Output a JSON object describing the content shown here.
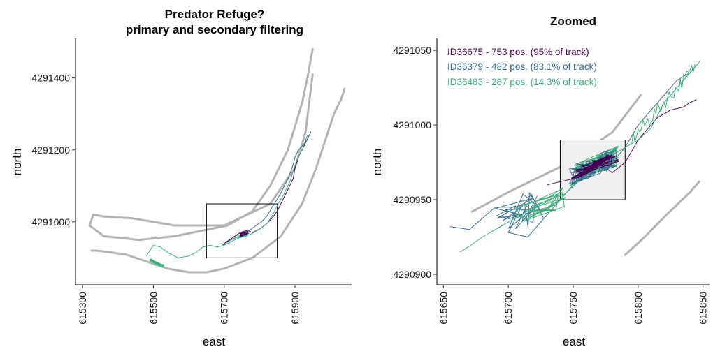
{
  "chart_data": [
    {
      "type": "line",
      "title": "Predator Refuge?",
      "subtitle": "primary and secondary filtering",
      "xlabel": "east",
      "ylabel": "north",
      "xlim": [
        615280,
        616060
      ],
      "ylim": [
        4290825,
        4291510
      ],
      "xticks": [
        615300,
        615500,
        615700,
        615900
      ],
      "yticks": [
        4291000,
        4291200,
        4291400
      ],
      "grid": false,
      "colors": {
        "river_outline": "#b3b3b3",
        "zoom_box": "#000000",
        "ID36675": "#440154",
        "ID36379": "#3b6e8f",
        "ID36483": "#3cb07a"
      },
      "river_outline": [
        {
          "x": [
            615950,
            615935,
            615920,
            615880,
            615830,
            615780,
            615710,
            615660,
            615560,
            615460,
            615360,
            615320,
            615330,
            615360,
            615440,
            615560,
            615700,
            615830,
            615900,
            615930,
            615940,
            615950
          ],
          "y": [
            4291480,
            4291400,
            4291330,
            4291200,
            4291100,
            4291030,
            4290990,
            4290980,
            4290960,
            4290950,
            4290960,
            4290990,
            4291020,
            4291015,
            4291010,
            4290990,
            4290990,
            4291050,
            4291150,
            4291250,
            4291330,
            4291410
          ]
        },
        {
          "x": [
            615325,
            615340,
            615420,
            615480,
            615540,
            615600,
            615650,
            615700,
            615780,
            615860,
            615920,
            615960,
            615990,
            616010,
            616030,
            616040
          ],
          "y": [
            4290920,
            4290920,
            4290910,
            4290890,
            4290870,
            4290860,
            4290860,
            4290870,
            4290900,
            4290960,
            4291050,
            4291150,
            4291240,
            4291300,
            4291340,
            4291370
          ]
        }
      ],
      "zoom_box": {
        "x": [
          615650,
          615850
        ],
        "y": [
          4290900,
          4291050
        ]
      },
      "series": [
        {
          "x": [
            615700,
            615730,
            615745,
            615760,
            615770,
            615780,
            615800,
            615820,
            615835,
            615850,
            615865,
            615875,
            615885,
            615895,
            615900,
            615910,
            615920,
            615930,
            615945
          ],
          "y": [
            4290940,
            4290960,
            4290970,
            4290975,
            4290975,
            4290970,
            4290980,
            4290995,
            4291010,
            4291030,
            4291060,
            4291080,
            4291100,
            4291120,
            4291150,
            4291180,
            4291200,
            4291220,
            4291250
          ]
        },
        {
          "x": [
            615690,
            615700,
            615710,
            615720,
            615730,
            615745,
            615755,
            615770,
            615790,
            615805,
            615820,
            615835,
            615848,
            615860,
            615870,
            615880,
            615888,
            615895,
            615900,
            615910,
            615920,
            615935,
            615945
          ],
          "y": [
            4290940,
            4290935,
            4290945,
            4290950,
            4290955,
            4290960,
            4290965,
            4290975,
            4290990,
            4291000,
            4291015,
            4291040,
            4291060,
            4291080,
            4291100,
            4291120,
            4291140,
            4291160,
            4291180,
            4291200,
            4291210,
            4291230,
            4291250
          ]
        },
        {
          "x": [
            615480,
            615500,
            615520,
            615540,
            615570,
            615600,
            615620,
            615640,
            615660,
            615680,
            615700,
            615720,
            615740,
            615760,
            615780,
            615800,
            615820,
            615835,
            615845,
            615855,
            615865,
            615875,
            615885,
            615895,
            615905,
            615920,
            615935
          ],
          "y": [
            4290905,
            4290935,
            4290930,
            4290915,
            4290900,
            4290905,
            4290915,
            4290930,
            4290935,
            4290930,
            4290935,
            4290945,
            4290955,
            4290960,
            4290968,
            4290980,
            4290995,
            4291015,
            4291035,
            4291055,
            4291070,
            4291090,
            4291110,
            4291140,
            4291170,
            4291200,
            4291240
          ]
        },
        {
          "x": [
            615490,
            615500,
            615510,
            615520,
            615530
          ],
          "y": [
            4290895,
            4290890,
            4290885,
            4290880,
            4290878
          ]
        }
      ]
    },
    {
      "type": "line",
      "title": "Zoomed",
      "xlabel": "east",
      "ylabel": "north",
      "xlim": [
        615645,
        615855
      ],
      "ylim": [
        4290893,
        4291058
      ],
      "xticks": [
        615650,
        615700,
        615750,
        615800,
        615850
      ],
      "yticks": [
        4290900,
        4290950,
        4291000,
        4291050
      ],
      "grid": false,
      "legend": [
        "ID36675 - 753 pos. (95% of track)",
        "ID36379 - 482 pos. (83.1% of track)",
        "ID36483 - 287 pos. (14.3% of track)"
      ],
      "legend_position": "top-left",
      "river_outline": [
        {
          "x": [
            615672,
            615700,
            615740,
            615780,
            615802
          ],
          "y": [
            4290942,
            4290955,
            4290972,
            4290995,
            4291020
          ]
        },
        {
          "x": [
            615790,
            615805,
            615822,
            615840,
            615847
          ],
          "y": [
            4290913,
            4290925,
            4290940,
            4290955,
            4290962
          ]
        }
      ],
      "shaded_box": {
        "x": [
          615740,
          615790
        ],
        "y": [
          4290950,
          4290990
        ]
      },
      "series": [
        {
          "name": "ID36675 - 753 pos. (95% of track)",
          "color": "#440154",
          "x": [
            615730,
            615745,
            615755,
            615760,
            615770,
            615780,
            615790,
            615800,
            615805,
            615810,
            615815,
            615825,
            615835,
            615840,
            615845
          ],
          "y": [
            4290960,
            4290963,
            4290965,
            4290970,
            4290975,
            4290968,
            4290975,
            4290990,
            4290995,
            4291000,
            4291005,
            4291010,
            4291012,
            4291015,
            4291017
          ]
        },
        {
          "name": "ID36379 - 482 pos. (83.1% of track)",
          "color": "#3b6e8f",
          "x": [
            615655,
            615670,
            615690,
            615710,
            615700,
            615715,
            615730,
            615745,
            615755,
            615765,
            615780,
            615790,
            615800,
            615810,
            615820,
            615830,
            615840,
            615845
          ],
          "y": [
            4290932,
            4290930,
            4290945,
            4290945,
            4290928,
            4290925,
            4290940,
            4290955,
            4290963,
            4290970,
            4290975,
            4290985,
            4291000,
            4291010,
            4291020,
            4291030,
            4291035,
            4291040
          ]
        },
        {
          "name": "ID36483 - 287 pos. (14.3% of track)",
          "color": "#3cb07a",
          "x": [
            615663,
            615672,
            615680,
            615690,
            615700,
            615710,
            615720,
            615730,
            615740,
            615750,
            615760,
            615770,
            615780,
            615790,
            615800,
            615810,
            615820,
            615830,
            615840,
            615848
          ],
          "y": [
            4290915,
            4290920,
            4290925,
            4290930,
            4290935,
            4290940,
            4290942,
            4290945,
            4290950,
            4290960,
            4290968,
            4290975,
            4290980,
            4290985,
            4290990,
            4290998,
            4291015,
            4291025,
            4291035,
            4291043
          ]
        }
      ]
    }
  ]
}
